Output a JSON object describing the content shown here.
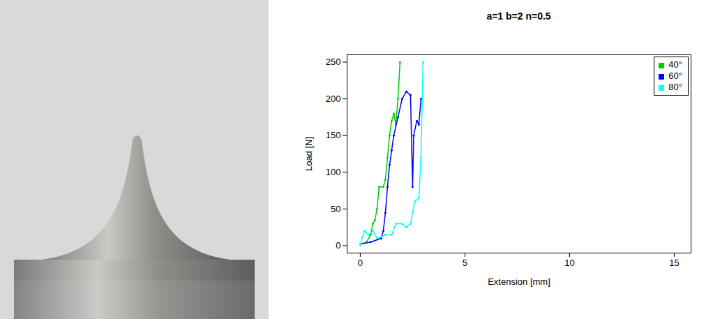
{
  "chart_data": {
    "type": "line",
    "title": "a=1 b=2 n=0.5",
    "x_label": "Extension [mm]",
    "y_label": "Load [N]",
    "xlim": [
      -0.63,
      15.8
    ],
    "ylim": [
      -10,
      260
    ],
    "xticks": [
      0,
      5,
      10,
      15
    ],
    "yticks": [
      0,
      50,
      100,
      150,
      200,
      250
    ],
    "grid": false,
    "legend": "top-right",
    "marker": "point",
    "series": [
      {
        "name": "40°",
        "color": "#00cc00",
        "x": [
          0,
          0.3,
          0.5,
          0.6,
          0.7,
          0.8,
          0.9,
          1.1,
          1.2,
          1.3,
          1.4,
          1.5,
          1.6,
          1.7,
          1.8,
          1.9
        ],
        "values": [
          2,
          5,
          15,
          30,
          35,
          50,
          80,
          80,
          90,
          120,
          150,
          170,
          180,
          165,
          200,
          250
        ]
      },
      {
        "name": "60°",
        "color": "#0000ff",
        "x": [
          0,
          0.5,
          1.0,
          1.1,
          1.2,
          1.3,
          1.4,
          1.5,
          1.6,
          1.8,
          2.0,
          2.2,
          2.4,
          2.5,
          2.55,
          2.7,
          2.8,
          2.9
        ],
        "values": [
          2,
          5,
          10,
          20,
          45,
          80,
          110,
          130,
          150,
          175,
          200,
          210,
          205,
          80,
          150,
          170,
          165,
          200
        ]
      },
      {
        "name": "80°",
        "color": "#00ffff",
        "x": [
          0,
          0.2,
          0.4,
          0.6,
          0.8,
          1.0,
          1.2,
          1.5,
          1.7,
          2.0,
          2.2,
          2.4,
          2.6,
          2.8,
          2.9,
          3.0
        ],
        "values": [
          2,
          20,
          15,
          20,
          10,
          12,
          15,
          15,
          30,
          30,
          25,
          30,
          60,
          65,
          120,
          250
        ]
      }
    ]
  }
}
